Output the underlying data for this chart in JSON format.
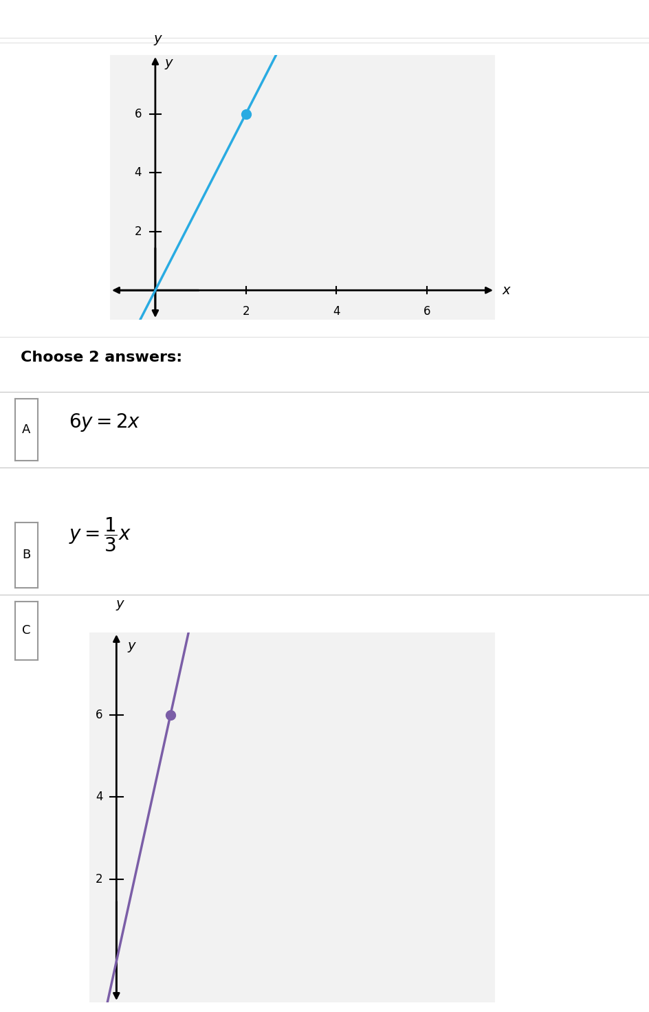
{
  "bg_color": "#ffffff",
  "header_color": "#eeeeee",
  "separator_color": "#cccccc",
  "grid_color": "#d0d0d0",
  "axis_color": "#000000",
  "top_graph": {
    "xlim": [
      -1,
      7.5
    ],
    "ylim": [
      -1,
      8
    ],
    "xticks": [
      2,
      4,
      6
    ],
    "yticks": [
      2,
      4,
      6
    ],
    "line_color": "#29ABE2",
    "slope": 3,
    "point_x": 2,
    "point_y": 6,
    "point_color": "#29ABE2",
    "graph_bg": "#f2f2f2"
  },
  "bottom_graph": {
    "xlim": [
      -0.5,
      7
    ],
    "ylim": [
      -1,
      8
    ],
    "yticks": [
      2,
      4,
      6
    ],
    "line_color": "#7B5EA7",
    "slope": 6,
    "point_x": 1,
    "point_y": 6,
    "point_color": "#7B5EA7",
    "graph_bg": "#f2f2f2"
  },
  "choose_text": "Choose 2 answers:",
  "option_A_label": "A",
  "option_B_label": "B",
  "option_C_label": "C",
  "label_box_edge": "#999999"
}
